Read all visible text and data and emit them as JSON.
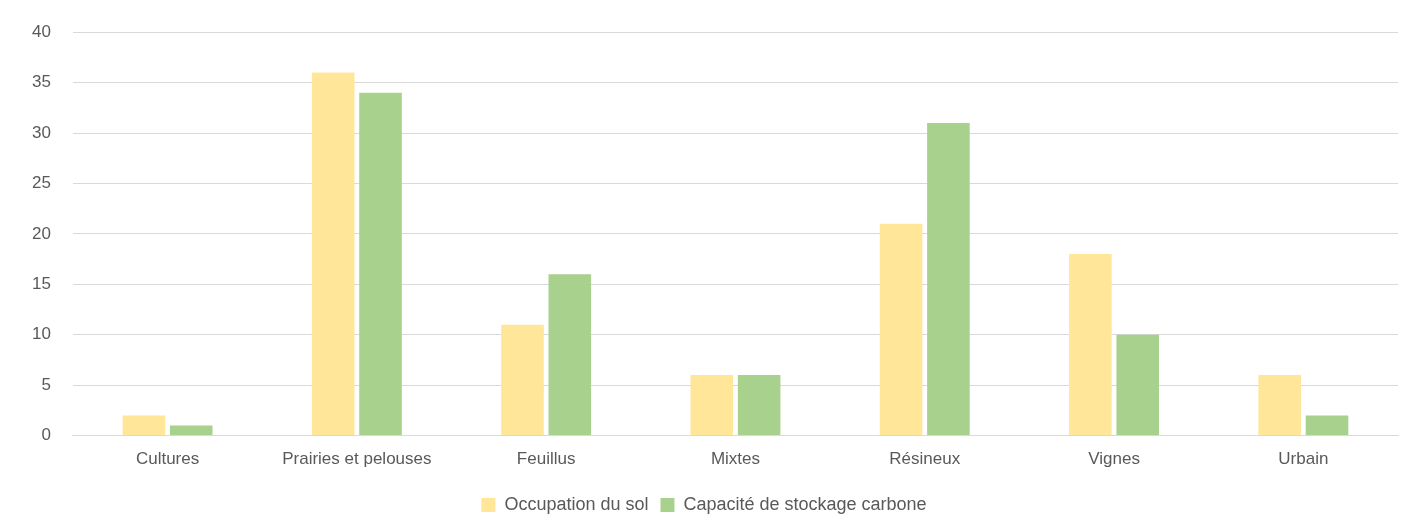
{
  "chart_data": {
    "type": "bar",
    "categories": [
      "Cultures",
      "Prairies et pelouses",
      "Feuillus",
      "Mixtes",
      "Résineux",
      "Vignes",
      "Urbain"
    ],
    "series": [
      {
        "name": "Occupation du sol",
        "color": "#ffe699",
        "values": [
          2,
          36,
          11,
          6,
          21,
          18,
          6
        ]
      },
      {
        "name": "Capacité de stockage carbone",
        "color": "#a9d18e",
        "values": [
          1,
          34,
          16,
          6,
          31,
          10,
          2
        ]
      }
    ],
    "ylim": [
      0,
      40
    ],
    "yticks": [
      0,
      5,
      10,
      15,
      20,
      25,
      30,
      35,
      40
    ],
    "grid": "y",
    "legend": "bottom"
  }
}
